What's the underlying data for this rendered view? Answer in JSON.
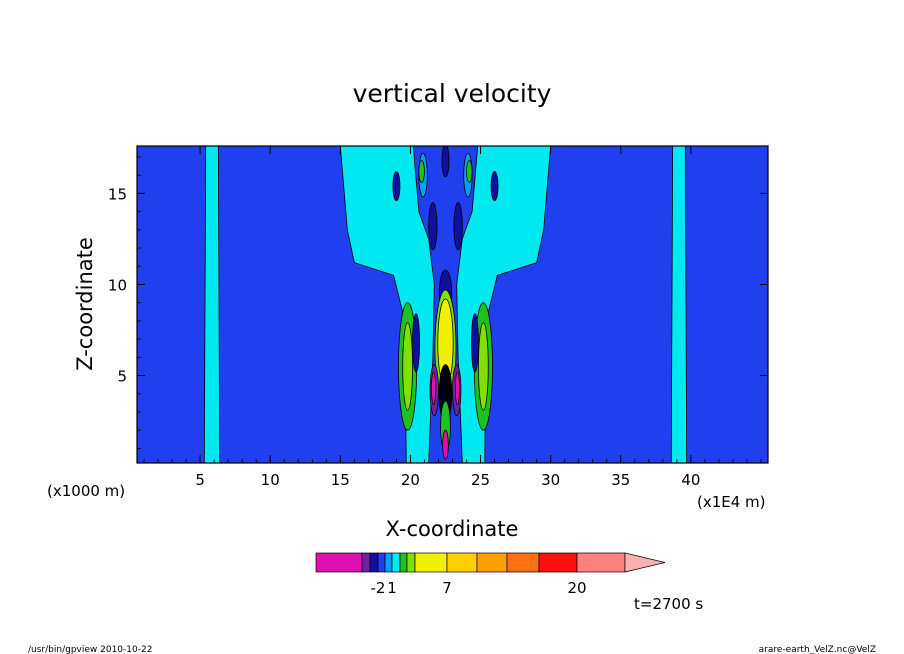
{
  "chart_data": {
    "type": "heatmap",
    "title": "vertical velocity",
    "xlabel": "X-coordinate",
    "ylabel": "Z-coordinate",
    "x_unit_left": "(x1000 m)",
    "x_unit_right": "(x1E4 m)",
    "xlim": [
      0.5,
      45.5
    ],
    "ylim": [
      0.2,
      17.6
    ],
    "x_ticks": [
      5,
      10,
      15,
      20,
      25,
      30,
      35,
      40
    ],
    "y_ticks": [
      5,
      10,
      15
    ],
    "background_color": "#2040f0",
    "field": {
      "description_values": "contoured vertical velocity field, symmetric plume centred near x=22.5",
      "center_x": 22.5,
      "levels_shown": [
        "-2",
        "1",
        "7",
        "20"
      ]
    },
    "colorbar": {
      "colors": [
        "#e010b0",
        "#7020a0",
        "#1010a0",
        "#2040f0",
        "#00a0ff",
        "#00e8f0",
        "#20c020",
        "#80e000",
        "#f0f000",
        "#ffd000",
        "#ffa000",
        "#ff7010",
        "#ff1010",
        "#ff8080",
        "#ffb0b0"
      ],
      "labels": [
        "-2",
        "1",
        "7",
        "20"
      ]
    },
    "annotation_time": "t=2700 s"
  },
  "footer": {
    "left": "/usr/bin/gpview   2010-10-22",
    "right": "arare-earth_VelZ.nc@VelZ"
  }
}
